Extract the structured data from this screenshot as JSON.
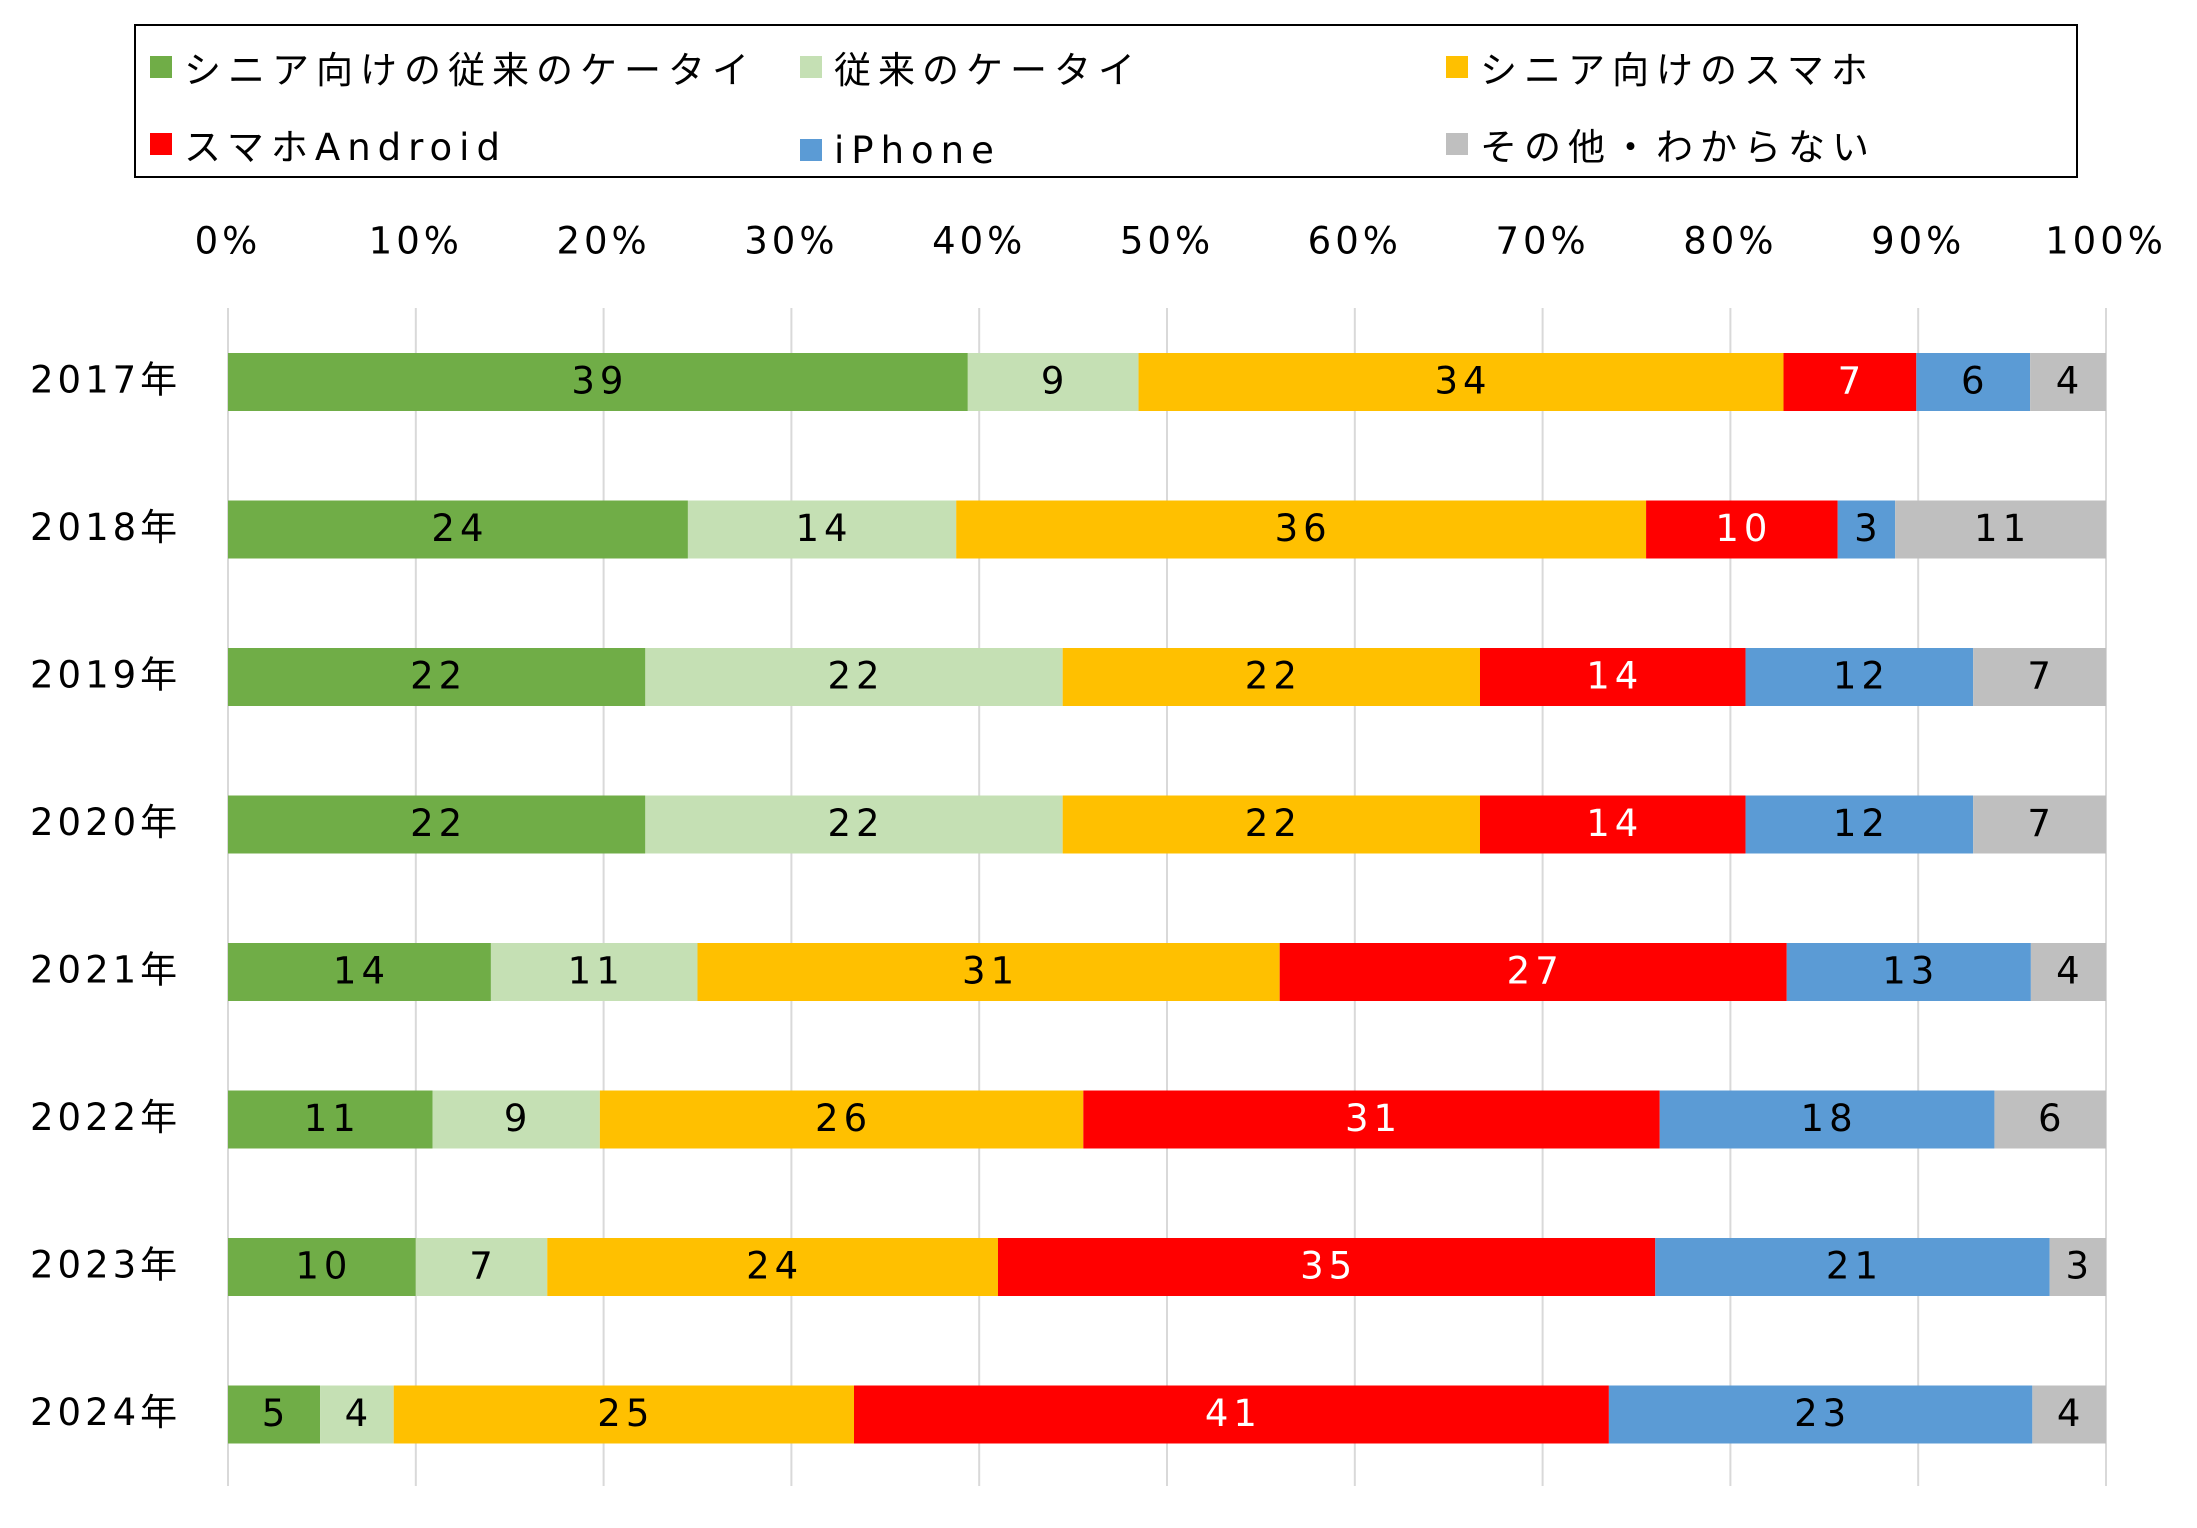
{
  "chart_data": {
    "type": "bar",
    "orientation": "horizontal",
    "stacked": true,
    "categories": [
      "2017年",
      "2018年",
      "2019年",
      "2020年",
      "2021年",
      "2022年",
      "2023年",
      "2024年"
    ],
    "xlim": [
      0,
      100
    ],
    "x_ticks": [
      "0%",
      "10%",
      "20%",
      "30%",
      "40%",
      "50%",
      "60%",
      "70%",
      "80%",
      "90%",
      "100%"
    ],
    "grid": true,
    "legend_position": "top",
    "series": [
      {
        "name": "シニア向けの従来のケータイ",
        "color": "#70ad47",
        "label_color": "#000000",
        "values": [
          39,
          24,
          22,
          22,
          14,
          11,
          10,
          5
        ]
      },
      {
        "name": "従来のケータイ",
        "color": "#c5e0b4",
        "label_color": "#000000",
        "values": [
          9,
          14,
          22,
          22,
          11,
          9,
          7,
          4
        ]
      },
      {
        "name": "シニア向けのスマホ",
        "color": "#ffc000",
        "label_color": "#000000",
        "values": [
          34,
          36,
          22,
          22,
          31,
          26,
          24,
          25
        ]
      },
      {
        "name": "スマホAndroid",
        "color": "#ff0000",
        "label_color": "#ffffff",
        "values": [
          7,
          10,
          14,
          14,
          27,
          31,
          35,
          41
        ]
      },
      {
        "name": "iPhone",
        "color": "#5b9bd5",
        "label_color": "#000000",
        "values": [
          6,
          3,
          12,
          12,
          13,
          18,
          21,
          23
        ]
      },
      {
        "name": "その他・わからない",
        "color": "#bfbfbf",
        "label_color": "#000000",
        "values": [
          4,
          11,
          7,
          7,
          4,
          6,
          3,
          4
        ]
      }
    ]
  }
}
